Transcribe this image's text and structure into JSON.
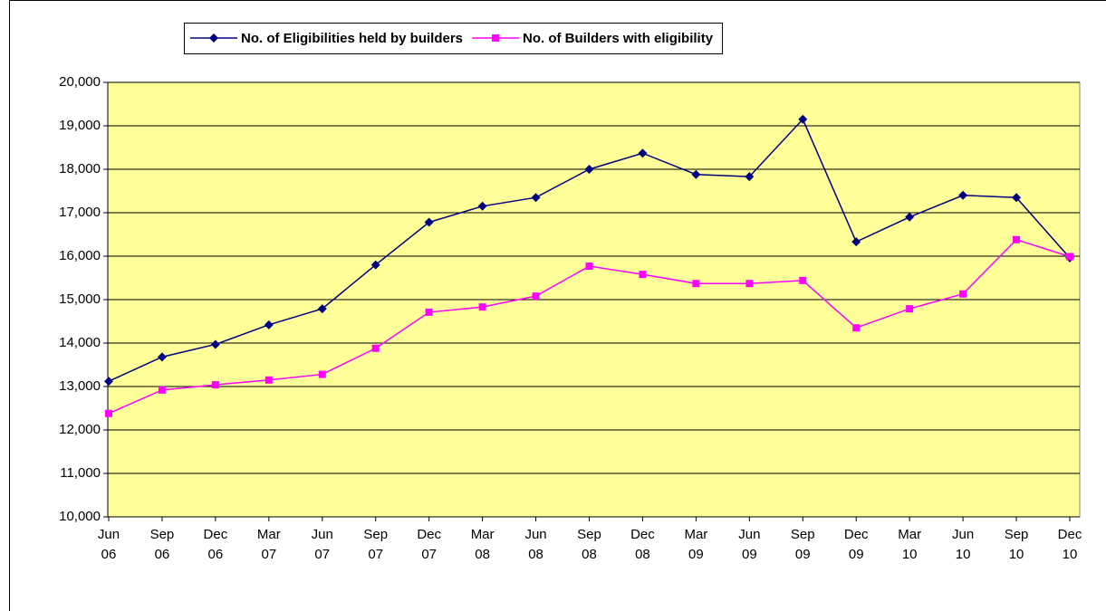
{
  "chart_data": {
    "type": "line",
    "categories": [
      "Jun 06",
      "Sep 06",
      "Dec 06",
      "Mar 07",
      "Jun 07",
      "Sep 07",
      "Dec 07",
      "Mar 08",
      "Jun 08",
      "Sep 08",
      "Dec 08",
      "Mar 09",
      "Jun 09",
      "Sep 09",
      "Dec 09",
      "Mar 10",
      "Jun 10",
      "Sep 10",
      "Dec 10"
    ],
    "series": [
      {
        "name": "No. of Eligibilities held by builders",
        "color": "#000080",
        "marker": "diamond",
        "values": [
          13120,
          13680,
          13970,
          14420,
          14790,
          15800,
          16780,
          17150,
          17350,
          18000,
          18370,
          17880,
          17830,
          19150,
          16330,
          16900,
          17400,
          17350,
          15960
        ]
      },
      {
        "name": "No. of Builders with eligibility",
        "color": "#ff00ff",
        "marker": "square",
        "values": [
          12380,
          12920,
          13040,
          13150,
          13280,
          13880,
          14710,
          14830,
          15080,
          15770,
          15580,
          15370,
          15370,
          15440,
          14350,
          14790,
          15130,
          16380,
          15990
        ]
      }
    ],
    "ylim": [
      10000,
      20000
    ],
    "yticks": [
      {
        "value": 10000,
        "label": "10,000"
      },
      {
        "value": 11000,
        "label": "11,000"
      },
      {
        "value": 12000,
        "label": "12,000"
      },
      {
        "value": 13000,
        "label": "13,000"
      },
      {
        "value": 14000,
        "label": "14,000"
      },
      {
        "value": 15000,
        "label": "15,000"
      },
      {
        "value": 16000,
        "label": "16,000"
      },
      {
        "value": 17000,
        "label": "17,000"
      },
      {
        "value": 18000,
        "label": "18,000"
      },
      {
        "value": 19000,
        "label": "19,000"
      },
      {
        "value": 20000,
        "label": "20,000"
      }
    ],
    "grid": true,
    "legend": "top",
    "plot_background": "#ffff99"
  }
}
